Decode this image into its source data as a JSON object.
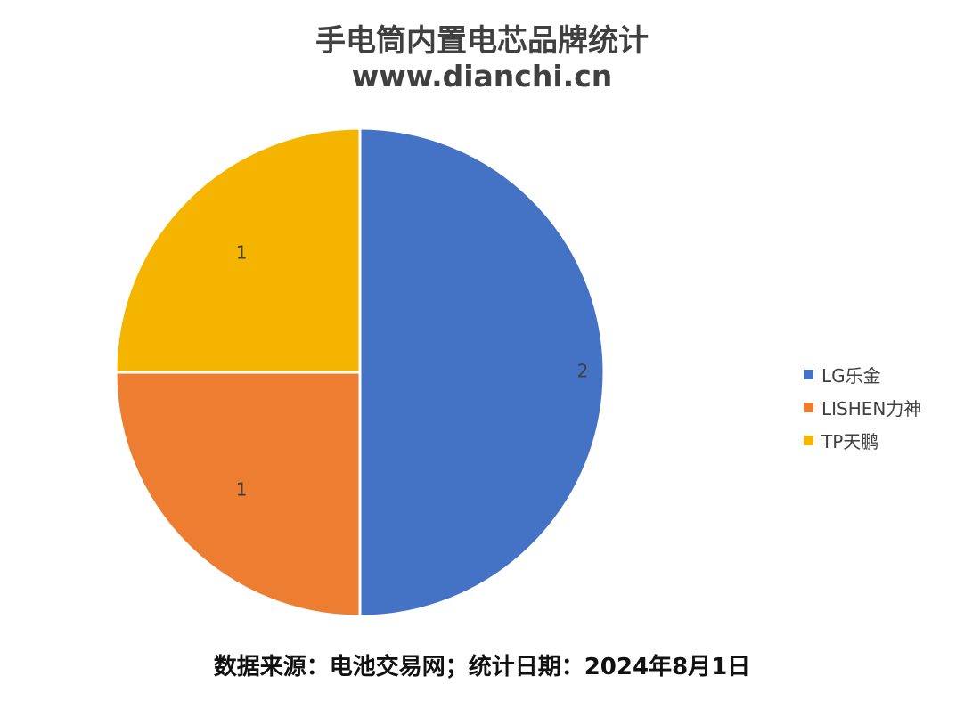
{
  "chart_data": {
    "type": "pie",
    "title": "手电筒内置电芯品牌统计",
    "subtitle": "www.dianchi.cn",
    "categories": [
      "LG乐金",
      "LISHEN力神",
      "TP天鹏"
    ],
    "values": [
      2,
      1,
      1
    ],
    "colors": [
      "#4472C4",
      "#ED7D31",
      "#F4B400"
    ],
    "data_labels": [
      "2",
      "1",
      "1"
    ],
    "legend": "right"
  },
  "footer": "数据来源：电池交易网；统计日期：2024年8月1日"
}
